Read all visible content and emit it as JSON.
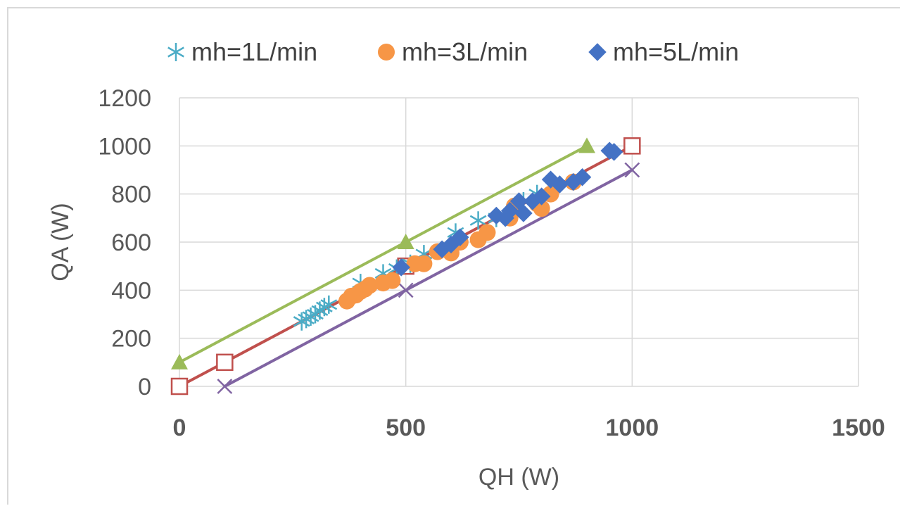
{
  "chart_data": {
    "type": "scatter",
    "title": "",
    "xlabel": "QH (W)",
    "ylabel": "QA (W)",
    "xlim": [
      0,
      1500
    ],
    "ylim": [
      0,
      1200
    ],
    "x_ticks": [
      0,
      500,
      1000,
      1500
    ],
    "y_ticks": [
      0,
      200,
      400,
      600,
      800,
      1000,
      1200
    ],
    "x_tick_labels": [
      "0",
      "500",
      "1000",
      "1500"
    ],
    "y_tick_labels": [
      "0",
      "200",
      "400",
      "600",
      "800",
      "1000",
      "1200"
    ],
    "grid": true,
    "legend_position": "top",
    "series": [
      {
        "name": "mh=1L/min",
        "marker": "asterisk",
        "color": "#4bacc6",
        "points": [
          [
            270,
            270
          ],
          [
            280,
            280
          ],
          [
            290,
            290
          ],
          [
            300,
            300
          ],
          [
            310,
            315
          ],
          [
            320,
            330
          ],
          [
            330,
            340
          ],
          [
            400,
            430
          ],
          [
            450,
            470
          ],
          [
            480,
            490
          ],
          [
            510,
            510
          ],
          [
            540,
            550
          ],
          [
            610,
            640
          ],
          [
            660,
            690
          ],
          [
            700,
            700
          ],
          [
            760,
            770
          ],
          [
            790,
            800
          ]
        ]
      },
      {
        "name": "mh=3L/min",
        "marker": "circle",
        "color": "#f79646",
        "points": [
          [
            370,
            355
          ],
          [
            380,
            375
          ],
          [
            390,
            380
          ],
          [
            400,
            395
          ],
          [
            410,
            405
          ],
          [
            420,
            420
          ],
          [
            450,
            430
          ],
          [
            470,
            440
          ],
          [
            520,
            510
          ],
          [
            540,
            510
          ],
          [
            570,
            560
          ],
          [
            600,
            555
          ],
          [
            620,
            600
          ],
          [
            660,
            610
          ],
          [
            680,
            640
          ],
          [
            730,
            700
          ],
          [
            740,
            750
          ],
          [
            790,
            760
          ],
          [
            800,
            740
          ],
          [
            820,
            800
          ],
          [
            870,
            850
          ]
        ]
      },
      {
        "name": "mh=5L/min",
        "marker": "diamond",
        "color": "#4472c4",
        "points": [
          [
            490,
            495
          ],
          [
            580,
            570
          ],
          [
            600,
            590
          ],
          [
            620,
            620
          ],
          [
            700,
            710
          ],
          [
            720,
            700
          ],
          [
            730,
            730
          ],
          [
            750,
            770
          ],
          [
            760,
            720
          ],
          [
            780,
            770
          ],
          [
            800,
            790
          ],
          [
            820,
            860
          ],
          [
            840,
            840
          ],
          [
            870,
            850
          ],
          [
            890,
            870
          ],
          [
            950,
            980
          ],
          [
            960,
            975
          ]
        ]
      }
    ],
    "reference_lines": [
      {
        "marker": "triangle",
        "color": "#9bbb59",
        "points": [
          [
            0,
            100
          ],
          [
            500,
            600
          ],
          [
            900,
            1000
          ]
        ]
      },
      {
        "marker": "square-open",
        "color": "#c0504d",
        "points": [
          [
            0,
            0
          ],
          [
            100,
            100
          ],
          [
            500,
            500
          ],
          [
            1000,
            1000
          ]
        ]
      },
      {
        "marker": "x",
        "color": "#8064a2",
        "points": [
          [
            100,
            0
          ],
          [
            500,
            400
          ],
          [
            1000,
            900
          ]
        ]
      }
    ]
  }
}
